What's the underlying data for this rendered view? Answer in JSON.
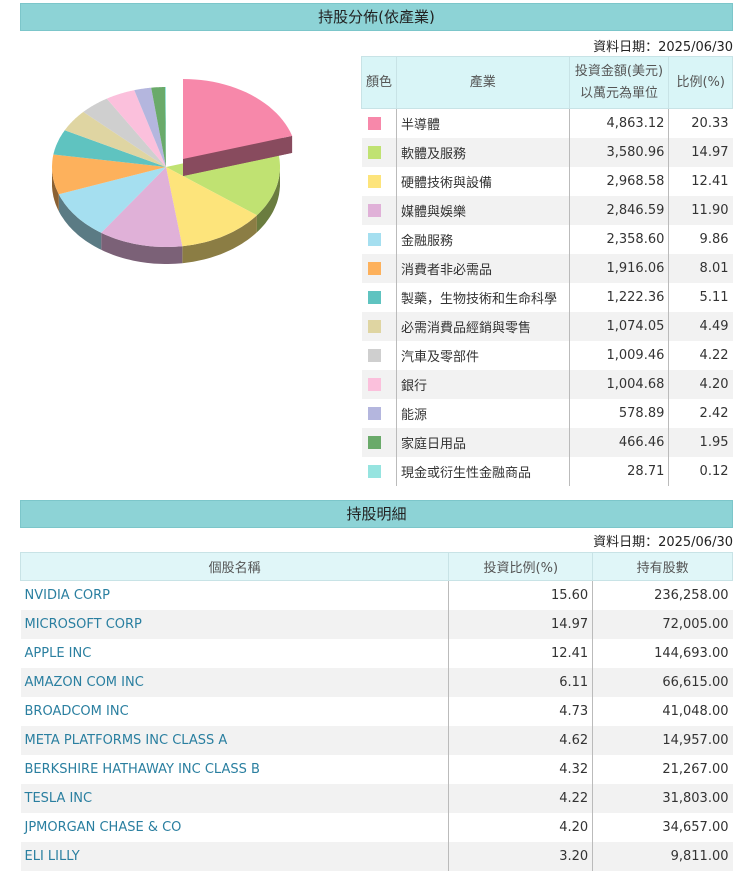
{
  "industry_section": {
    "title": "持股分佈(依產業)",
    "date": "資料日期：2025/06/30",
    "headers": {
      "color": "顏色",
      "industry": "產業",
      "amount_line1": "投資金額(美元)",
      "amount_line2": "以萬元為單位",
      "ratio": "比例(%)"
    },
    "rows": [
      {
        "color": "#f788aa",
        "name": "半導體",
        "amount": "4,863.12",
        "ratio": "20.33"
      },
      {
        "color": "#c0e272",
        "name": "軟體及服務",
        "amount": "3,580.96",
        "ratio": "14.97"
      },
      {
        "color": "#fde47b",
        "name": "硬體技術與設備",
        "amount": "2,968.58",
        "ratio": "12.41"
      },
      {
        "color": "#e0b1d8",
        "name": "媒體與娛樂",
        "amount": "2,846.59",
        "ratio": "11.90"
      },
      {
        "color": "#a5dff0",
        "name": "金融服務",
        "amount": "2,358.60",
        "ratio": "9.86"
      },
      {
        "color": "#fdb15c",
        "name": "消費者非必需品",
        "amount": "1,916.06",
        "ratio": "8.01"
      },
      {
        "color": "#5fc3c0",
        "name": "製藥，生物技術和生命科學",
        "amount": "1,222.36",
        "ratio": "5.11"
      },
      {
        "color": "#dfd5a2",
        "name": "必需消費品經銷與零售",
        "amount": "1,074.05",
        "ratio": "4.49"
      },
      {
        "color": "#cfcfcf",
        "name": "汽車及零部件",
        "amount": "1,009.46",
        "ratio": "4.22"
      },
      {
        "color": "#fbc0dc",
        "name": "銀行",
        "amount": "1,004.68",
        "ratio": "4.20"
      },
      {
        "color": "#b4b6de",
        "name": "能源",
        "amount": "578.89",
        "ratio": "2.42"
      },
      {
        "color": "#6aaa6a",
        "name": "家庭日用品",
        "amount": "466.46",
        "ratio": "1.95"
      },
      {
        "color": "#96e4e0",
        "name": "現金或衍生性金融商品",
        "amount": "28.71",
        "ratio": "0.12"
      }
    ]
  },
  "chart_data": {
    "type": "pie",
    "style": "3d-exploded-first-slice",
    "categories": [
      "半導體",
      "軟體及服務",
      "硬體技術與設備",
      "媒體與娛樂",
      "金融服務",
      "消費者非必需品",
      "製藥，生物技術和生命科學",
      "必需消費品經銷與零售",
      "汽車及零部件",
      "銀行",
      "能源",
      "家庭日用品",
      "現金或衍生性金融商品"
    ],
    "values": [
      20.33,
      14.97,
      12.41,
      11.9,
      9.86,
      8.01,
      5.11,
      4.49,
      4.22,
      4.2,
      2.42,
      1.95,
      0.12
    ],
    "colors": [
      "#f788aa",
      "#c0e272",
      "#fde47b",
      "#e0b1d8",
      "#a5dff0",
      "#fdb15c",
      "#5fc3c0",
      "#dfd5a2",
      "#cfcfcf",
      "#fbc0dc",
      "#b4b6de",
      "#6aaa6a",
      "#96e4e0"
    ]
  },
  "holdings_section": {
    "title": "持股明細",
    "date": "資料日期：2025/06/30",
    "headers": {
      "name": "個股名稱",
      "ratio": "投資比例(%)",
      "shares": "持有股數"
    },
    "rows": [
      {
        "name": "NVIDIA CORP",
        "ratio": "15.60",
        "shares": "236,258.00"
      },
      {
        "name": "MICROSOFT CORP",
        "ratio": "14.97",
        "shares": "72,005.00"
      },
      {
        "name": "APPLE INC",
        "ratio": "12.41",
        "shares": "144,693.00"
      },
      {
        "name": "AMAZON COM INC",
        "ratio": "6.11",
        "shares": "66,615.00"
      },
      {
        "name": "BROADCOM INC",
        "ratio": "4.73",
        "shares": "41,048.00"
      },
      {
        "name": "META PLATFORMS INC CLASS A",
        "ratio": "4.62",
        "shares": "14,957.00"
      },
      {
        "name": "BERKSHIRE HATHAWAY INC CLASS B",
        "ratio": "4.32",
        "shares": "21,267.00"
      },
      {
        "name": "TESLA INC",
        "ratio": "4.22",
        "shares": "31,803.00"
      },
      {
        "name": "JPMORGAN CHASE & CO",
        "ratio": "4.20",
        "shares": "34,657.00"
      },
      {
        "name": "ELI LILLY",
        "ratio": "3.20",
        "shares": "9,811.00"
      }
    ]
  }
}
